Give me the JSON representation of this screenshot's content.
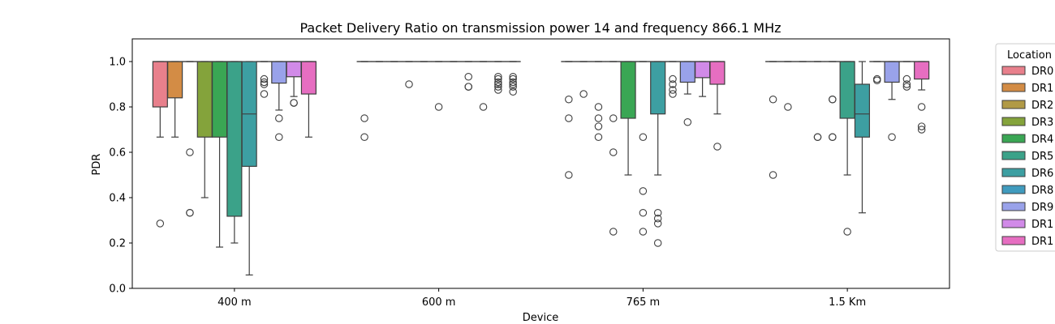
{
  "chart_data": {
    "type": "boxplot",
    "title": "Packet Delivery Ratio on transmission power 14 and frequency 866.1 MHz",
    "xlabel": "Device",
    "ylabel": "PDR",
    "ylim": [
      0,
      1.1
    ],
    "yticks": [
      "0.0",
      "0.2",
      "0.4",
      "0.6",
      "0.8",
      "1.0"
    ],
    "categories": [
      "400 m",
      "600 m",
      "765 m",
      "1.5 Km"
    ],
    "legend": {
      "title": "Location",
      "placement": "outside-right",
      "entries": [
        "DR0",
        "DR1",
        "DR2",
        "DR3",
        "DR4",
        "DR5",
        "DR6",
        "DR8",
        "DR9",
        "DR1",
        "DR1"
      ]
    },
    "colors": [
      "#e8808c",
      "#d38c45",
      "#b19a46",
      "#84a33b",
      "#3aa654",
      "#3ba289",
      "#3d9fa2",
      "#409bbe",
      "#99a2ea",
      "#d18ae8",
      "#e66ec1"
    ],
    "series": [
      {
        "boxes": [
          {
            "q1": 0.8,
            "median": 1.0,
            "q3": 1.0,
            "whislo": 0.667,
            "whishi": 1.0,
            "fliers": [
              0.286
            ]
          },
          {
            "q1": 1.0,
            "median": 1.0,
            "q3": 1.0,
            "whislo": 1.0,
            "whishi": 1.0,
            "fliers": [
              0.75,
              0.667
            ]
          },
          {
            "q1": 1.0,
            "median": 1.0,
            "q3": 1.0,
            "whislo": 1.0,
            "whishi": 1.0,
            "fliers": [
              0.833,
              0.75,
              0.5
            ]
          },
          {
            "q1": 1.0,
            "median": 1.0,
            "q3": 1.0,
            "whislo": 1.0,
            "whishi": 1.0,
            "fliers": [
              0.833,
              0.5
            ]
          }
        ]
      },
      {
        "boxes": [
          {
            "q1": 0.84,
            "median": 1.0,
            "q3": 1.0,
            "whislo": 0.667,
            "whishi": 1.0,
            "fliers": []
          },
          {
            "q1": 1.0,
            "median": 1.0,
            "q3": 1.0,
            "whislo": 1.0,
            "whishi": 1.0,
            "fliers": []
          },
          {
            "q1": 1.0,
            "median": 1.0,
            "q3": 1.0,
            "whislo": 1.0,
            "whishi": 1.0,
            "fliers": [
              0.857
            ]
          },
          {
            "q1": 1.0,
            "median": 1.0,
            "q3": 1.0,
            "whislo": 1.0,
            "whishi": 1.0,
            "fliers": [
              0.8
            ]
          }
        ]
      },
      {
        "boxes": [
          {
            "q1": 1.0,
            "median": 1.0,
            "q3": 1.0,
            "whislo": 1.0,
            "whishi": 1.0,
            "fliers": [
              0.6,
              0.333,
              0.333
            ]
          },
          {
            "q1": 1.0,
            "median": 1.0,
            "q3": 1.0,
            "whislo": 1.0,
            "whishi": 1.0,
            "fliers": []
          },
          {
            "q1": 1.0,
            "median": 1.0,
            "q3": 1.0,
            "whislo": 1.0,
            "whishi": 1.0,
            "fliers": [
              0.8,
              0.75,
              0.714,
              0.667
            ]
          },
          {
            "q1": 1.0,
            "median": 1.0,
            "q3": 1.0,
            "whislo": 1.0,
            "whishi": 1.0,
            "fliers": []
          }
        ]
      },
      {
        "boxes": [
          {
            "q1": 0.667,
            "median": 1.0,
            "q3": 1.0,
            "whislo": 0.4,
            "whishi": 1.0,
            "fliers": []
          },
          {
            "q1": 1.0,
            "median": 1.0,
            "q3": 1.0,
            "whislo": 1.0,
            "whishi": 1.0,
            "fliers": [
              0.9
            ]
          },
          {
            "q1": 1.0,
            "median": 1.0,
            "q3": 1.0,
            "whislo": 1.0,
            "whishi": 1.0,
            "fliers": [
              0.75,
              0.6,
              0.25
            ]
          },
          {
            "q1": 1.0,
            "median": 1.0,
            "q3": 1.0,
            "whislo": 1.0,
            "whishi": 1.0,
            "fliers": [
              0.667,
              0.667
            ]
          }
        ]
      },
      {
        "boxes": [
          {
            "q1": 0.667,
            "median": 1.0,
            "q3": 1.0,
            "whislo": 0.182,
            "whishi": 1.0,
            "fliers": []
          },
          {
            "q1": 1.0,
            "median": 1.0,
            "q3": 1.0,
            "whislo": 1.0,
            "whishi": 1.0,
            "fliers": []
          },
          {
            "q1": 0.75,
            "median": 1.0,
            "q3": 1.0,
            "whislo": 0.5,
            "whishi": 1.0,
            "fliers": []
          },
          {
            "q1": 1.0,
            "median": 1.0,
            "q3": 1.0,
            "whislo": 1.0,
            "whishi": 1.0,
            "fliers": [
              0.833,
              0.833,
              0.667,
              0.667
            ]
          }
        ]
      },
      {
        "boxes": [
          {
            "q1": 0.318,
            "median": 1.0,
            "q3": 1.0,
            "whislo": 0.2,
            "whishi": 1.0,
            "fliers": []
          },
          {
            "q1": 1.0,
            "median": 1.0,
            "q3": 1.0,
            "whislo": 1.0,
            "whishi": 1.0,
            "fliers": [
              0.8
            ]
          },
          {
            "q1": 1.0,
            "median": 1.0,
            "q3": 1.0,
            "whislo": 1.0,
            "whishi": 1.0,
            "fliers": [
              0.667,
              0.429,
              0.333,
              0.25
            ]
          },
          {
            "q1": 0.75,
            "median": 1.0,
            "q3": 1.0,
            "whislo": 0.5,
            "whishi": 1.0,
            "fliers": [
              0.25
            ]
          }
        ]
      },
      {
        "boxes": [
          {
            "q1": 0.538,
            "median": 0.769,
            "q3": 1.0,
            "whislo": 0.059,
            "whishi": 1.0,
            "fliers": []
          },
          {
            "q1": 1.0,
            "median": 1.0,
            "q3": 1.0,
            "whislo": 1.0,
            "whishi": 1.0,
            "fliers": []
          },
          {
            "q1": 0.769,
            "median": 1.0,
            "q3": 1.0,
            "whislo": 0.5,
            "whishi": 1.0,
            "fliers": [
              0.333,
              0.308,
              0.286,
              0.2
            ]
          },
          {
            "q1": 0.667,
            "median": 0.769,
            "q3": 0.9,
            "whislo": 0.333,
            "whishi": 1.0,
            "fliers": []
          }
        ]
      },
      {
        "boxes": [
          {
            "q1": 1.0,
            "median": 1.0,
            "q3": 1.0,
            "whislo": 1.0,
            "whishi": 1.0,
            "fliers": [
              0.923,
              0.909,
              0.9,
              0.857
            ]
          },
          {
            "q1": 1.0,
            "median": 1.0,
            "q3": 1.0,
            "whislo": 1.0,
            "whishi": 1.0,
            "fliers": [
              0.933,
              0.889,
              0.889
            ]
          },
          {
            "q1": 1.0,
            "median": 1.0,
            "q3": 1.0,
            "whislo": 1.0,
            "whishi": 1.0,
            "fliers": [
              0.923,
              0.9,
              0.875,
              0.857
            ]
          },
          {
            "q1": 1.0,
            "median": 1.0,
            "q3": 1.0,
            "whislo": 1.0,
            "whishi": 1.0,
            "fliers": [
              0.923,
              0.917
            ]
          }
        ]
      },
      {
        "boxes": [
          {
            "q1": 0.905,
            "median": 1.0,
            "q3": 1.0,
            "whislo": 0.786,
            "whishi": 1.0,
            "fliers": [
              0.75,
              0.667
            ]
          },
          {
            "q1": 1.0,
            "median": 1.0,
            "q3": 1.0,
            "whislo": 1.0,
            "whishi": 1.0,
            "fliers": [
              0.8
            ]
          },
          {
            "q1": 0.909,
            "median": 1.0,
            "q3": 1.0,
            "whislo": 0.857,
            "whishi": 1.0,
            "fliers": [
              0.733
            ]
          },
          {
            "q1": 0.909,
            "median": 1.0,
            "q3": 1.0,
            "whislo": 0.833,
            "whishi": 1.0,
            "fliers": [
              0.667
            ]
          }
        ]
      },
      {
        "boxes": [
          {
            "q1": 0.933,
            "median": 1.0,
            "q3": 1.0,
            "whislo": 0.846,
            "whishi": 1.0,
            "fliers": [
              0.818,
              0.818
            ]
          },
          {
            "q1": 1.0,
            "median": 1.0,
            "q3": 1.0,
            "whislo": 1.0,
            "whishi": 1.0,
            "fliers": [
              0.933,
              0.923,
              0.909,
              0.9,
              0.889,
              0.875
            ]
          },
          {
            "q1": 0.929,
            "median": 1.0,
            "q3": 1.0,
            "whislo": 0.846,
            "whishi": 1.0,
            "fliers": []
          },
          {
            "q1": 1.0,
            "median": 1.0,
            "q3": 1.0,
            "whislo": 1.0,
            "whishi": 1.0,
            "fliers": [
              0.923,
              0.9,
              0.889
            ]
          }
        ]
      },
      {
        "boxes": [
          {
            "q1": 0.857,
            "median": 1.0,
            "q3": 1.0,
            "whislo": 0.667,
            "whishi": 1.0,
            "fliers": []
          },
          {
            "q1": 1.0,
            "median": 1.0,
            "q3": 1.0,
            "whislo": 1.0,
            "whishi": 1.0,
            "fliers": [
              0.933,
              0.923,
              0.909,
              0.9,
              0.889,
              0.867
            ]
          },
          {
            "q1": 0.9,
            "median": 1.0,
            "q3": 1.0,
            "whislo": 0.769,
            "whishi": 1.0,
            "fliers": [
              0.625
            ]
          },
          {
            "q1": 0.923,
            "median": 1.0,
            "q3": 1.0,
            "whislo": 0.875,
            "whishi": 1.0,
            "fliers": [
              0.8,
              0.714,
              0.7
            ]
          }
        ]
      }
    ]
  }
}
